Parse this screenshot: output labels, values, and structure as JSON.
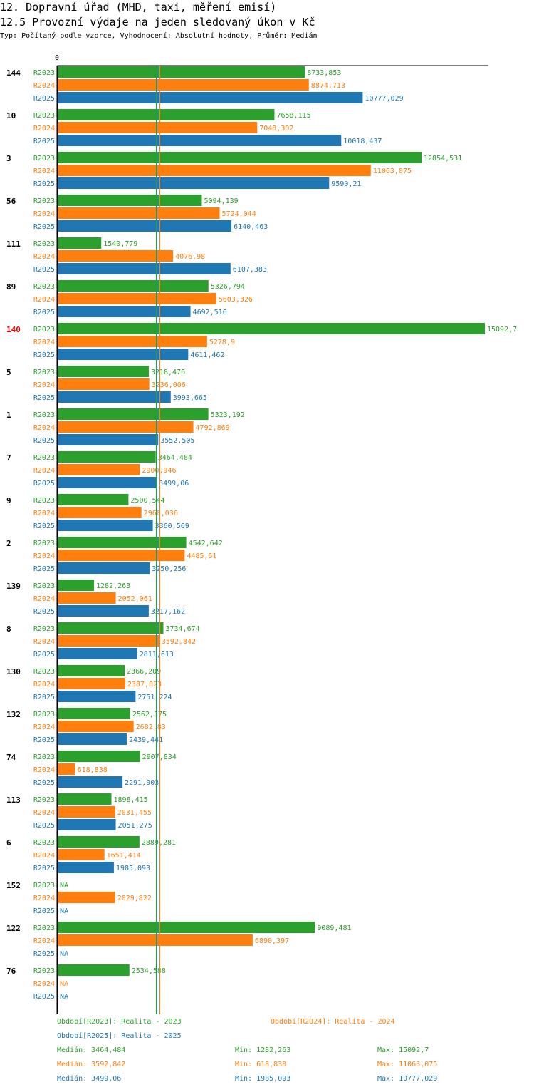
{
  "header": {
    "title": "12. Dopravní úřad (MHD, taxi, měření emisí)",
    "subtitle": "12.5 Provozní výdaje na jeden sledovaný úkon v Kč",
    "meta": "Typ: Počítaný podle vzorce, Vyhodnocení: Absolutní hodnoty, Průměr: Medián"
  },
  "colors": {
    "R2023": "#2ca02c",
    "R2024": "#ff7f0e",
    "R2025": "#1f77b4",
    "highlight": "#ff0000",
    "axis": "#000000"
  },
  "chart_data": {
    "type": "bar",
    "orientation": "horizontal",
    "title": "12.5 Provozní výdaje na jeden sledovaný úkon v Kč",
    "xlim": [
      0,
      15092.7
    ],
    "x_tick_label": "0",
    "series_names": [
      "R2023",
      "R2024",
      "R2025"
    ],
    "na_label": "NA",
    "categories": [
      {
        "label": "144",
        "highlight": false,
        "values": [
          "8733,853",
          "8874,713",
          "10777,029"
        ]
      },
      {
        "label": "10",
        "highlight": false,
        "values": [
          "7658,115",
          "7048,302",
          "10018,437"
        ]
      },
      {
        "label": "3",
        "highlight": false,
        "values": [
          "12854,531",
          "11063,075",
          "9590,21"
        ]
      },
      {
        "label": "56",
        "highlight": false,
        "values": [
          "5094,139",
          "5724,044",
          "6140,463"
        ]
      },
      {
        "label": "111",
        "highlight": false,
        "values": [
          "1540,779",
          "4076,98",
          "6107,383"
        ]
      },
      {
        "label": "89",
        "highlight": false,
        "values": [
          "5326,794",
          "5603,326",
          "4692,516"
        ]
      },
      {
        "label": "140",
        "highlight": true,
        "values": [
          "15092,7",
          "5278,9",
          "4611,462"
        ]
      },
      {
        "label": "5",
        "highlight": false,
        "values": [
          "3218,476",
          "3236,006",
          "3993,665"
        ]
      },
      {
        "label": "1",
        "highlight": false,
        "values": [
          "5323,192",
          "4792,869",
          "3552,505"
        ]
      },
      {
        "label": "7",
        "highlight": false,
        "values": [
          "3464,484",
          "2900,946",
          "3499,06"
        ]
      },
      {
        "label": "9",
        "highlight": false,
        "values": [
          "2500,544",
          "2960,036",
          "3360,569"
        ]
      },
      {
        "label": "2",
        "highlight": false,
        "values": [
          "4542,642",
          "4485,61",
          "3250,256"
        ]
      },
      {
        "label": "139",
        "highlight": false,
        "values": [
          "1282,263",
          "2052,061",
          "3217,162"
        ]
      },
      {
        "label": "8",
        "highlight": false,
        "values": [
          "3734,674",
          "3592,842",
          "2811,613"
        ]
      },
      {
        "label": "130",
        "highlight": false,
        "values": [
          "2366,209",
          "2387,023",
          "2751,224"
        ]
      },
      {
        "label": "132",
        "highlight": false,
        "values": [
          "2562,175",
          "2682,83",
          "2439,441"
        ]
      },
      {
        "label": "74",
        "highlight": false,
        "values": [
          "2907,834",
          "618,838",
          "2291,903"
        ]
      },
      {
        "label": "113",
        "highlight": false,
        "values": [
          "1898,415",
          "2031,455",
          "2051,275"
        ]
      },
      {
        "label": "6",
        "highlight": false,
        "values": [
          "2889,281",
          "1651,414",
          "1985,093"
        ]
      },
      {
        "label": "152",
        "highlight": false,
        "values": [
          null,
          "2029,822",
          null
        ]
      },
      {
        "label": "122",
        "highlight": false,
        "values": [
          "9089,481",
          "6890,397",
          null
        ]
      },
      {
        "label": "76",
        "highlight": false,
        "values": [
          "2534,588",
          null,
          null
        ]
      }
    ],
    "median_lines": [
      {
        "series": "R2023",
        "value": 3464.484
      },
      {
        "series": "R2024",
        "value": 3592.842
      },
      {
        "series": "R2025",
        "value": 3499.06
      }
    ]
  },
  "legend": {
    "r2023": "Období[R2023]: Realita - 2023",
    "r2024": "Období[R2024]: Realita - 2024",
    "r2025": "Období[R2025]: Realita - 2025"
  },
  "stats": {
    "r2023": {
      "median": "Medián: 3464,484",
      "min": "Min: 1282,263",
      "max": "Max: 15092,7"
    },
    "r2024": {
      "median": "Medián: 3592,842",
      "min": "Min: 618,838",
      "max": "Max: 11063,075"
    },
    "r2025": {
      "median": "Medián: 3499,06",
      "min": "Min: 1985,093",
      "max": "Max: 10777,029"
    }
  }
}
